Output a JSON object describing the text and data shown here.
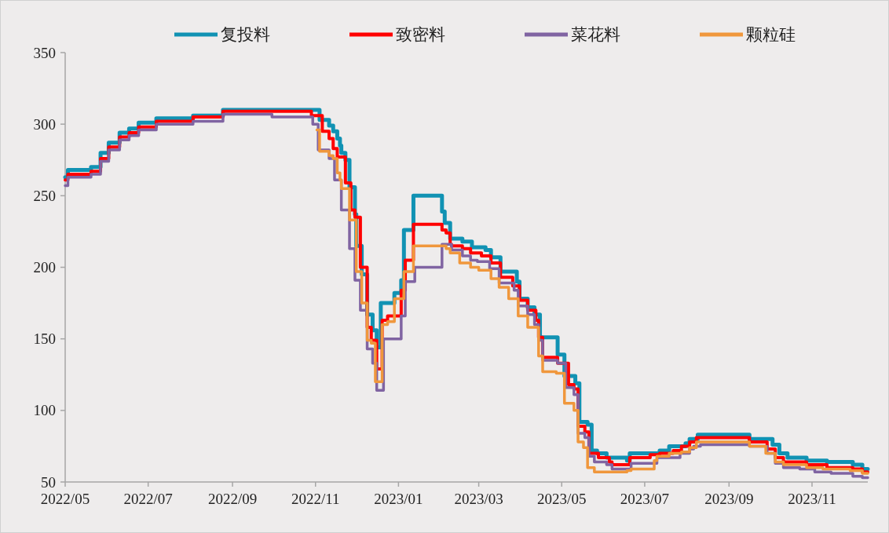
{
  "chart_data": {
    "type": "step",
    "legend": "top",
    "ylim": [
      50,
      350
    ],
    "yticks": [
      50,
      100,
      150,
      200,
      250,
      300,
      350
    ],
    "xlim": [
      "2022-05-01",
      "2023-12-12"
    ],
    "xticks": [
      {
        "value": "2022-05-01",
        "label": "2022/05"
      },
      {
        "value": "2022-07-01",
        "label": "2022/07"
      },
      {
        "value": "2022-09-01",
        "label": "2022/09"
      },
      {
        "value": "2022-11-01",
        "label": "2022/11"
      },
      {
        "value": "2023-01-01",
        "label": "2023/01"
      },
      {
        "value": "2023-03-01",
        "label": "2023/03"
      },
      {
        "value": "2023-05-01",
        "label": "2023/05"
      },
      {
        "value": "2023-07-01",
        "label": "2023/07"
      },
      {
        "value": "2023-09-01",
        "label": "2023/09"
      },
      {
        "value": "2023-11-01",
        "label": "2023/11"
      }
    ],
    "series": [
      {
        "name": "复投料",
        "color": "#1192b3",
        "x": [
          "2022-05-01",
          "2022-05-03",
          "2022-05-20",
          "2022-05-27",
          "2022-06-02",
          "2022-06-10",
          "2022-06-17",
          "2022-06-24",
          "2022-07-07",
          "2022-08-03",
          "2022-08-25",
          "2022-11-04",
          "2022-11-11",
          "2022-11-14",
          "2022-11-17",
          "2022-11-19",
          "2022-11-20",
          "2022-11-23",
          "2022-11-26",
          "2022-11-30",
          "2022-12-01",
          "2022-12-05",
          "2022-12-09",
          "2022-12-13",
          "2022-12-16",
          "2022-12-19",
          "2022-12-24",
          "2022-12-29",
          "2023-01-03",
          "2023-01-05",
          "2023-01-12",
          "2023-02-02",
          "2023-02-04",
          "2023-02-08",
          "2023-02-17",
          "2023-02-24",
          "2023-03-06",
          "2023-03-10",
          "2023-03-17",
          "2023-03-29",
          "2023-03-31",
          "2023-04-06",
          "2023-04-11",
          "2023-04-15",
          "2023-04-28",
          "2023-05-03",
          "2023-05-11",
          "2023-05-14",
          "2023-05-20",
          "2023-05-23",
          "2023-05-27",
          "2023-06-03",
          "2023-06-18",
          "2023-06-20",
          "2023-07-12",
          "2023-07-19",
          "2023-07-31",
          "2023-08-03",
          "2023-08-09",
          "2023-09-16",
          "2023-10-03",
          "2023-10-08",
          "2023-10-14",
          "2023-10-28",
          "2023-11-12",
          "2023-12-01",
          "2023-12-08",
          "2023-12-12"
        ],
        "values": [
          263,
          268,
          270,
          280,
          287,
          294,
          297,
          301,
          304,
          306,
          310,
          303,
          299,
          295,
          290,
          285,
          280,
          275,
          256,
          237,
          215,
          195,
          167,
          156,
          144,
          175,
          175,
          182,
          191,
          226,
          250,
          239,
          231,
          220,
          218,
          214,
          212,
          207,
          197,
          190,
          178,
          172,
          167,
          151,
          139,
          124,
          119,
          92,
          90,
          72,
          70,
          67,
          65,
          70,
          72,
          75,
          77,
          80,
          83,
          80,
          76,
          70,
          67,
          65,
          64,
          62,
          59,
          59
        ]
      },
      {
        "name": "致密料",
        "color": "#ff0000",
        "x": [
          "2022-05-01",
          "2022-05-03",
          "2022-05-20",
          "2022-05-27",
          "2022-06-02",
          "2022-06-10",
          "2022-06-17",
          "2022-06-24",
          "2022-07-07",
          "2022-08-03",
          "2022-08-25",
          "2022-10-29",
          "2022-11-06",
          "2022-11-11",
          "2022-11-14",
          "2022-11-17",
          "2022-11-23",
          "2022-11-27",
          "2022-11-30",
          "2022-12-04",
          "2022-12-09",
          "2022-12-12",
          "2022-12-16",
          "2022-12-20",
          "2022-12-24",
          "2023-01-03",
          "2023-01-06",
          "2023-01-12",
          "2023-02-02",
          "2023-02-05",
          "2023-02-08",
          "2023-02-09",
          "2023-02-17",
          "2023-02-23",
          "2023-03-03",
          "2023-03-10",
          "2023-03-17",
          "2023-03-26",
          "2023-03-31",
          "2023-04-06",
          "2023-04-12",
          "2023-04-14",
          "2023-04-17",
          "2023-04-28",
          "2023-05-06",
          "2023-05-10",
          "2023-05-13",
          "2023-05-18",
          "2023-05-21",
          "2023-05-28",
          "2023-06-05",
          "2023-06-07",
          "2023-06-20",
          "2023-07-05",
          "2023-07-12",
          "2023-07-22",
          "2023-07-28",
          "2023-08-03",
          "2023-08-08",
          "2023-09-16",
          "2023-09-29",
          "2023-10-05",
          "2023-10-11",
          "2023-10-28",
          "2023-11-12",
          "2023-12-01",
          "2023-12-08",
          "2023-12-12"
        ],
        "values": [
          261,
          265,
          267,
          276,
          284,
          291,
          294,
          298,
          302,
          305,
          309,
          306,
          295,
          290,
          283,
          277,
          259,
          240,
          235,
          200,
          158,
          149,
          129,
          163,
          166,
          184,
          205,
          230,
          226,
          224,
          216,
          215,
          213,
          210,
          208,
          203,
          193,
          187,
          177,
          170,
          163,
          151,
          137,
          133,
          118,
          115,
          89,
          85,
          70,
          67,
          64,
          62,
          67,
          69,
          70,
          72,
          75,
          78,
          81,
          78,
          73,
          67,
          64,
          62,
          60,
          59,
          57,
          57
        ]
      },
      {
        "name": "菜花料",
        "color": "#8064a2",
        "x": [
          "2022-05-01",
          "2022-05-03",
          "2022-05-20",
          "2022-05-27",
          "2022-06-02",
          "2022-06-10",
          "2022-06-17",
          "2022-06-24",
          "2022-07-07",
          "2022-08-03",
          "2022-08-25",
          "2022-09-30",
          "2022-10-30",
          "2022-11-03",
          "2022-11-11",
          "2022-11-15",
          "2022-11-20",
          "2022-11-26",
          "2022-11-30",
          "2022-12-04",
          "2022-12-09",
          "2022-12-13",
          "2022-12-16",
          "2022-12-21",
          "2022-12-24",
          "2023-01-03",
          "2023-01-06",
          "2023-01-13",
          "2023-02-02",
          "2023-02-09",
          "2023-02-17",
          "2023-02-23",
          "2023-02-28",
          "2023-03-09",
          "2023-03-16",
          "2023-03-27",
          "2023-03-30",
          "2023-04-06",
          "2023-04-11",
          "2023-04-14",
          "2023-04-17",
          "2023-04-28",
          "2023-05-04",
          "2023-05-10",
          "2023-05-13",
          "2023-05-18",
          "2023-05-21",
          "2023-05-25",
          "2023-06-03",
          "2023-06-07",
          "2023-06-21",
          "2023-07-10",
          "2023-07-27",
          "2023-08-03",
          "2023-08-06",
          "2023-08-11",
          "2023-09-16",
          "2023-09-29",
          "2023-10-05",
          "2023-10-11",
          "2023-10-23",
          "2023-11-03",
          "2023-11-15",
          "2023-12-01",
          "2023-12-08",
          "2023-12-12"
        ],
        "values": [
          257,
          263,
          265,
          274,
          282,
          289,
          292,
          296,
          300,
          302,
          307,
          305,
          300,
          282,
          276,
          261,
          240,
          213,
          191,
          170,
          143,
          133,
          114,
          150,
          150,
          166,
          190,
          200,
          216,
          212,
          208,
          205,
          204,
          199,
          189,
          184,
          173,
          167,
          160,
          149,
          135,
          133,
          116,
          111,
          84,
          81,
          68,
          64,
          62,
          59,
          63,
          67,
          70,
          73,
          75,
          76,
          75,
          70,
          63,
          60,
          59,
          57,
          56,
          54,
          53,
          53
        ]
      },
      {
        "name": "颗粒硅",
        "color": "#f0973c",
        "x": [
          "2022-11-02",
          "2022-11-04",
          "2022-11-11",
          "2022-11-14",
          "2022-11-17",
          "2022-11-19",
          "2022-11-20",
          "2022-11-26",
          "2022-12-01",
          "2022-12-05",
          "2022-12-09",
          "2022-12-12",
          "2022-12-15",
          "2022-12-20",
          "2022-12-24",
          "2022-12-29",
          "2023-01-05",
          "2023-01-12",
          "2023-02-05",
          "2023-02-08",
          "2023-02-15",
          "2023-02-23",
          "2023-03-01",
          "2023-03-10",
          "2023-03-16",
          "2023-03-23",
          "2023-03-30",
          "2023-04-06",
          "2023-04-14",
          "2023-04-17",
          "2023-04-27",
          "2023-05-03",
          "2023-05-10",
          "2023-05-13",
          "2023-05-17",
          "2023-05-20",
          "2023-05-25",
          "2023-06-18",
          "2023-06-21",
          "2023-07-08",
          "2023-07-10",
          "2023-07-19",
          "2023-07-28",
          "2023-08-03",
          "2023-08-08",
          "2023-09-16",
          "2023-09-28",
          "2023-10-05",
          "2023-10-11",
          "2023-10-28",
          "2023-11-09",
          "2023-11-29",
          "2023-12-08",
          "2023-12-12"
        ],
        "values": [
          296,
          281,
          278,
          276,
          266,
          261,
          255,
          233,
          197,
          175,
          149,
          147,
          120,
          160,
          162,
          178,
          197,
          215,
          213,
          210,
          203,
          200,
          198,
          192,
          186,
          178,
          166,
          158,
          138,
          127,
          126,
          105,
          100,
          78,
          74,
          60,
          57,
          58,
          59,
          65,
          68,
          70,
          71,
          74,
          78,
          75,
          70,
          64,
          62,
          60,
          59,
          58,
          56,
          56
        ]
      }
    ]
  }
}
